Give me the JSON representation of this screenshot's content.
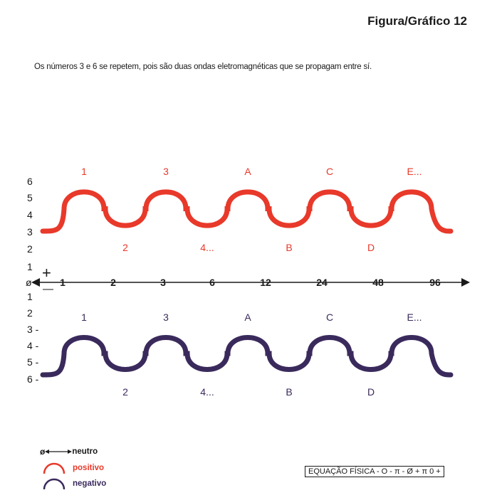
{
  "header": {
    "title": "Figura/Gráfico 12",
    "subtitle": "Os números 3 e 6 se repetem, pois são duas ondas eletromagnéticas que se propagam entre sí."
  },
  "colors": {
    "positive": "#e8392a",
    "negative": "#3a2a5c",
    "axis": "#1a1a1a"
  },
  "upper_wave": {
    "peak_labels": [
      "1",
      "3",
      "A",
      "C",
      "E..."
    ],
    "trough_labels": [
      "2",
      "4...",
      "B",
      "D"
    ],
    "scale_labels": [
      "6",
      "5",
      "4",
      "3",
      "2",
      "1"
    ]
  },
  "axis": {
    "origin": "ø",
    "ticks": [
      "1",
      "2",
      "3",
      "6",
      "12",
      "24",
      "48",
      "96"
    ],
    "plus": "+",
    "minus": "—"
  },
  "lower_wave": {
    "peak_labels": [
      "1",
      "3",
      "A",
      "C",
      "E..."
    ],
    "trough_labels": [
      "2",
      "4...",
      "B",
      "D"
    ],
    "scale_labels": [
      "1",
      "2",
      "3 -",
      "4 -",
      "5 -",
      "6 -"
    ]
  },
  "legend": {
    "neutral_symbol": "ø",
    "neutral": "neutro",
    "positive": "positivo",
    "negative": "negativo"
  },
  "equation": "EQUAÇÃO FÍSICA - O - π - Ø + π 0 +"
}
